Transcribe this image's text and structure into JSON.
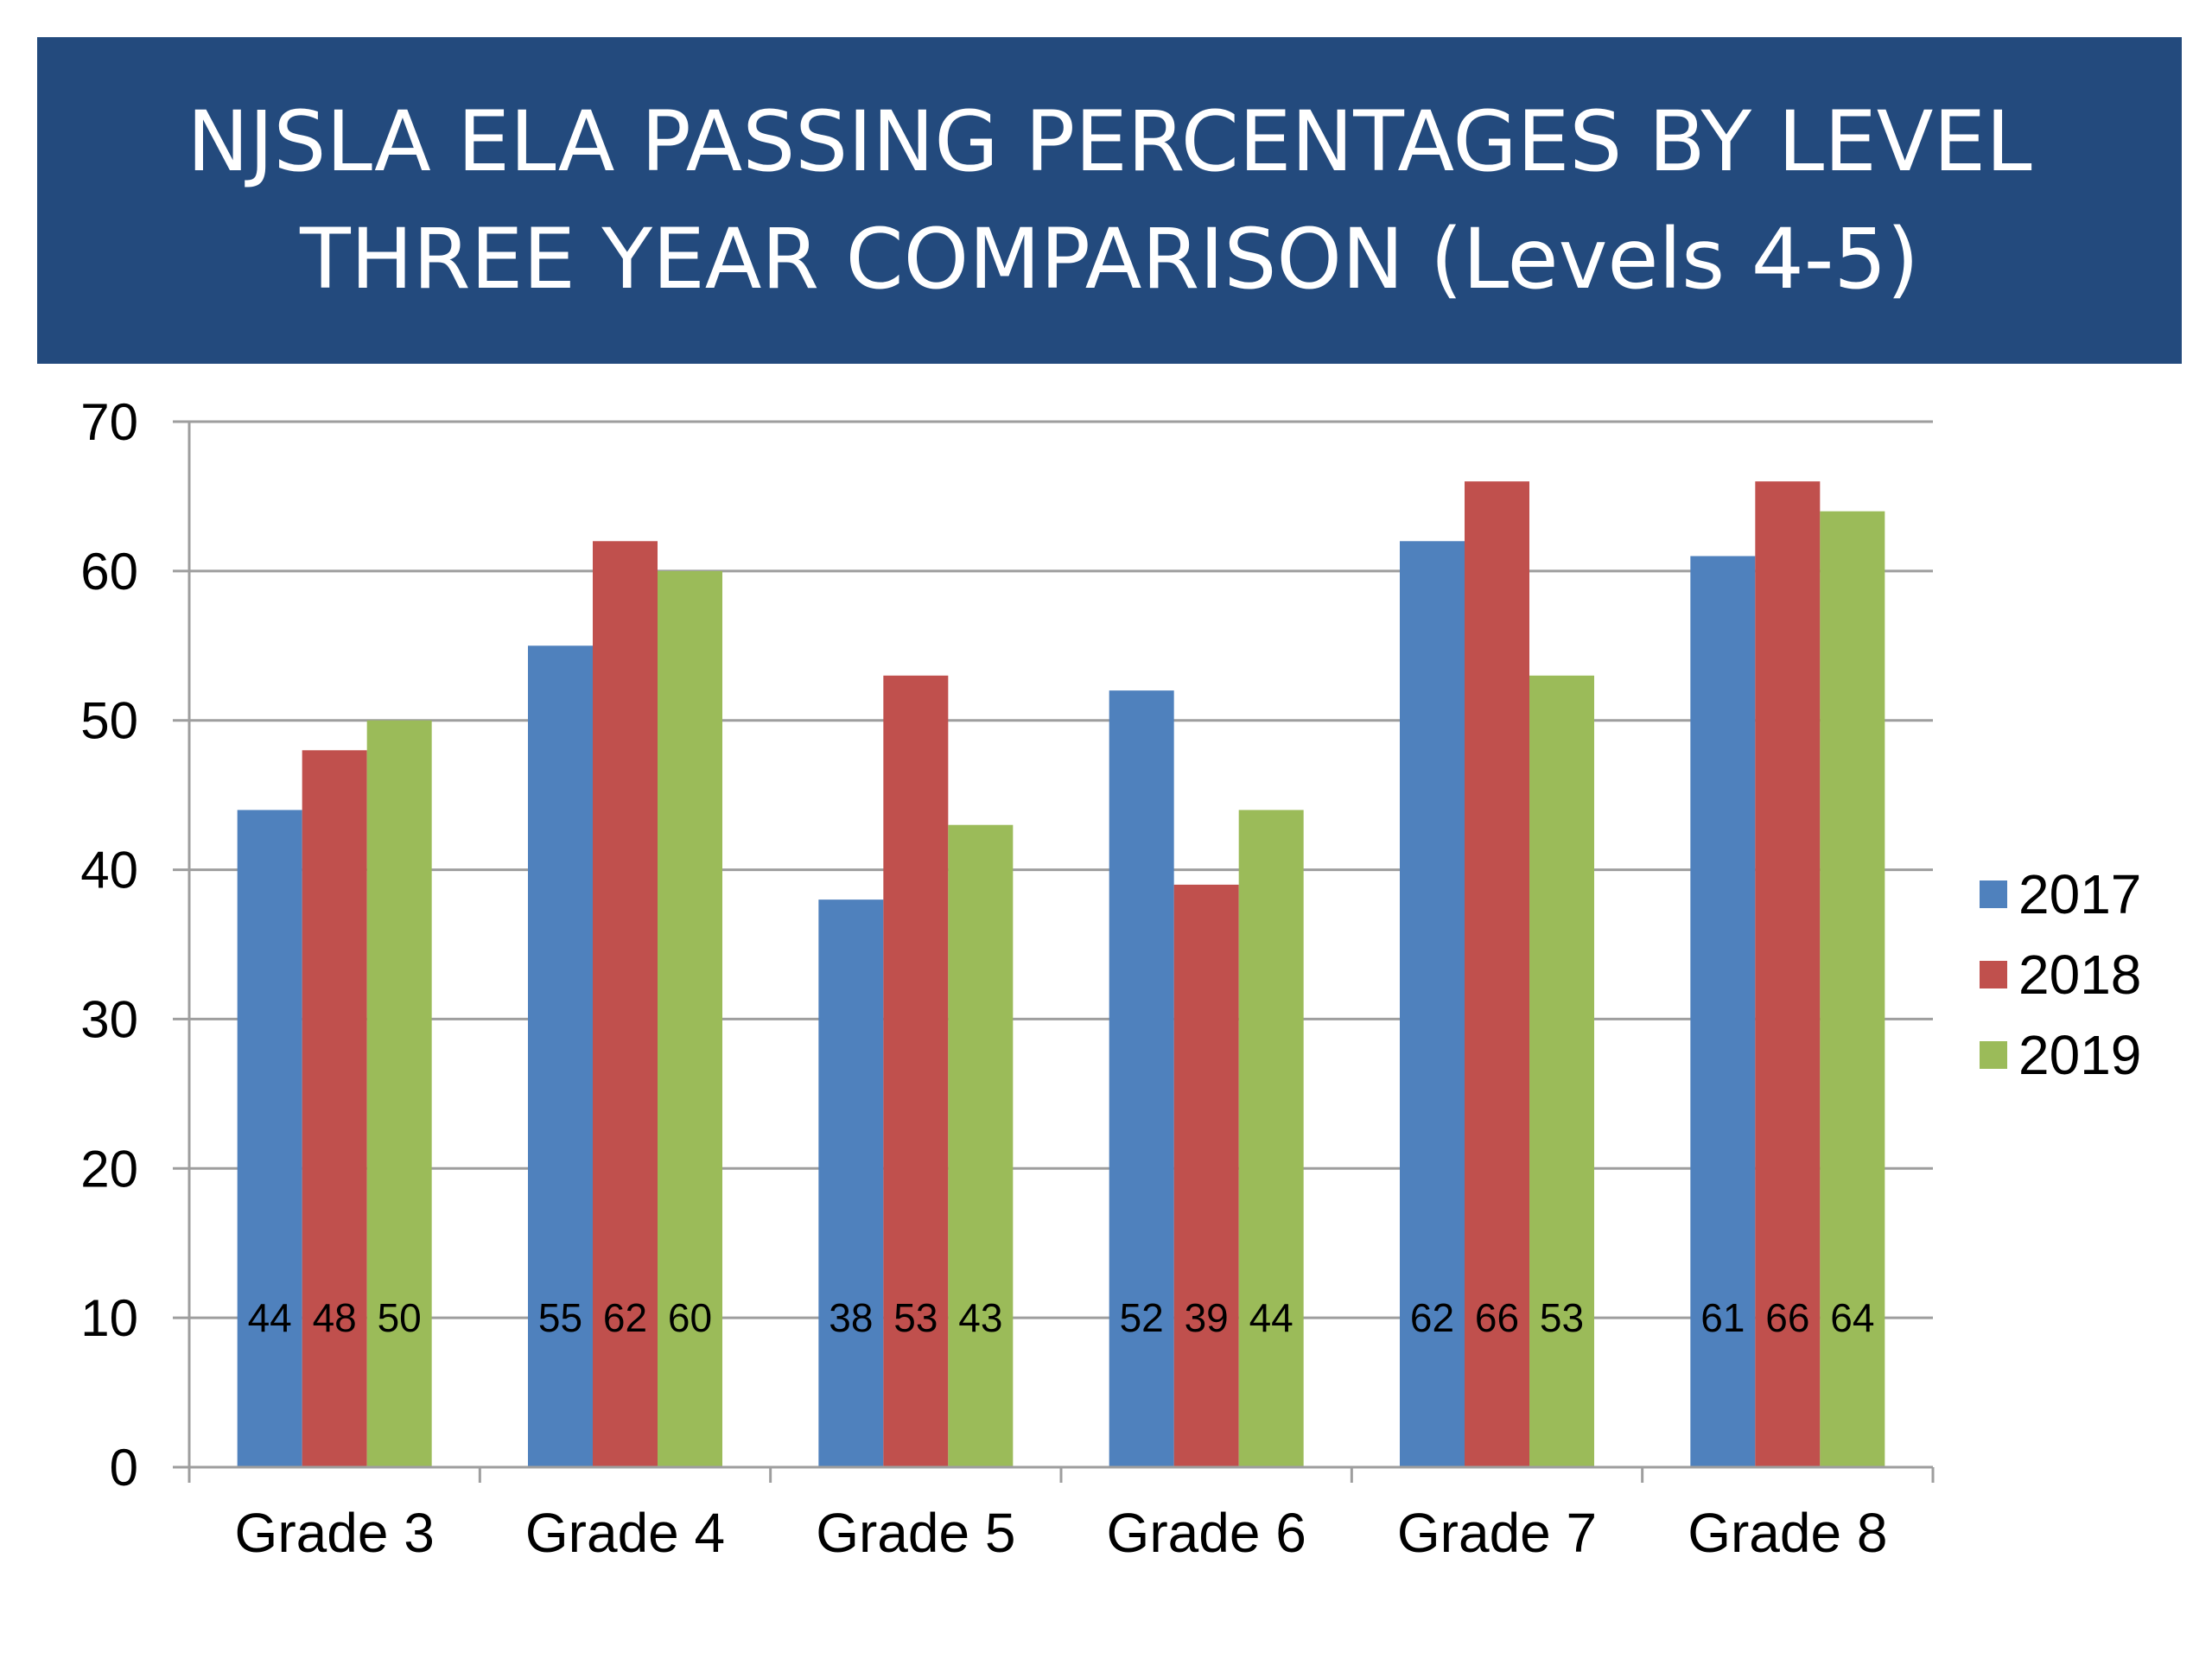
{
  "title": {
    "line1": "NJSLA ELA PASSING PERCENTAGES BY LEVEL",
    "line2": "THREE YEAR COMPARISON (Levels 4-5)"
  },
  "colors": {
    "banner": "#234a7d",
    "grid": "#9e9e9e",
    "series": [
      "#4f81bd",
      "#c0504d",
      "#9bbb59"
    ]
  },
  "chart_data": {
    "type": "bar",
    "title": "NJSLA ELA PASSING PERCENTAGES BY LEVEL THREE YEAR COMPARISON (Levels 4-5)",
    "categories": [
      "Grade 3",
      "Grade 4",
      "Grade 5",
      "Grade 6",
      "Grade 7",
      "Grade 8"
    ],
    "series": [
      {
        "name": "2017",
        "values": [
          44,
          55,
          38,
          52,
          62,
          61
        ]
      },
      {
        "name": "2018",
        "values": [
          48,
          62,
          53,
          39,
          66,
          66
        ]
      },
      {
        "name": "2019",
        "values": [
          50,
          60,
          43,
          44,
          53,
          64
        ]
      }
    ],
    "ylim": [
      0,
      70
    ],
    "yticks": [
      0,
      10,
      20,
      30,
      40,
      50,
      60,
      70
    ],
    "data_label_value": 10,
    "grid": true,
    "legend": "right"
  }
}
